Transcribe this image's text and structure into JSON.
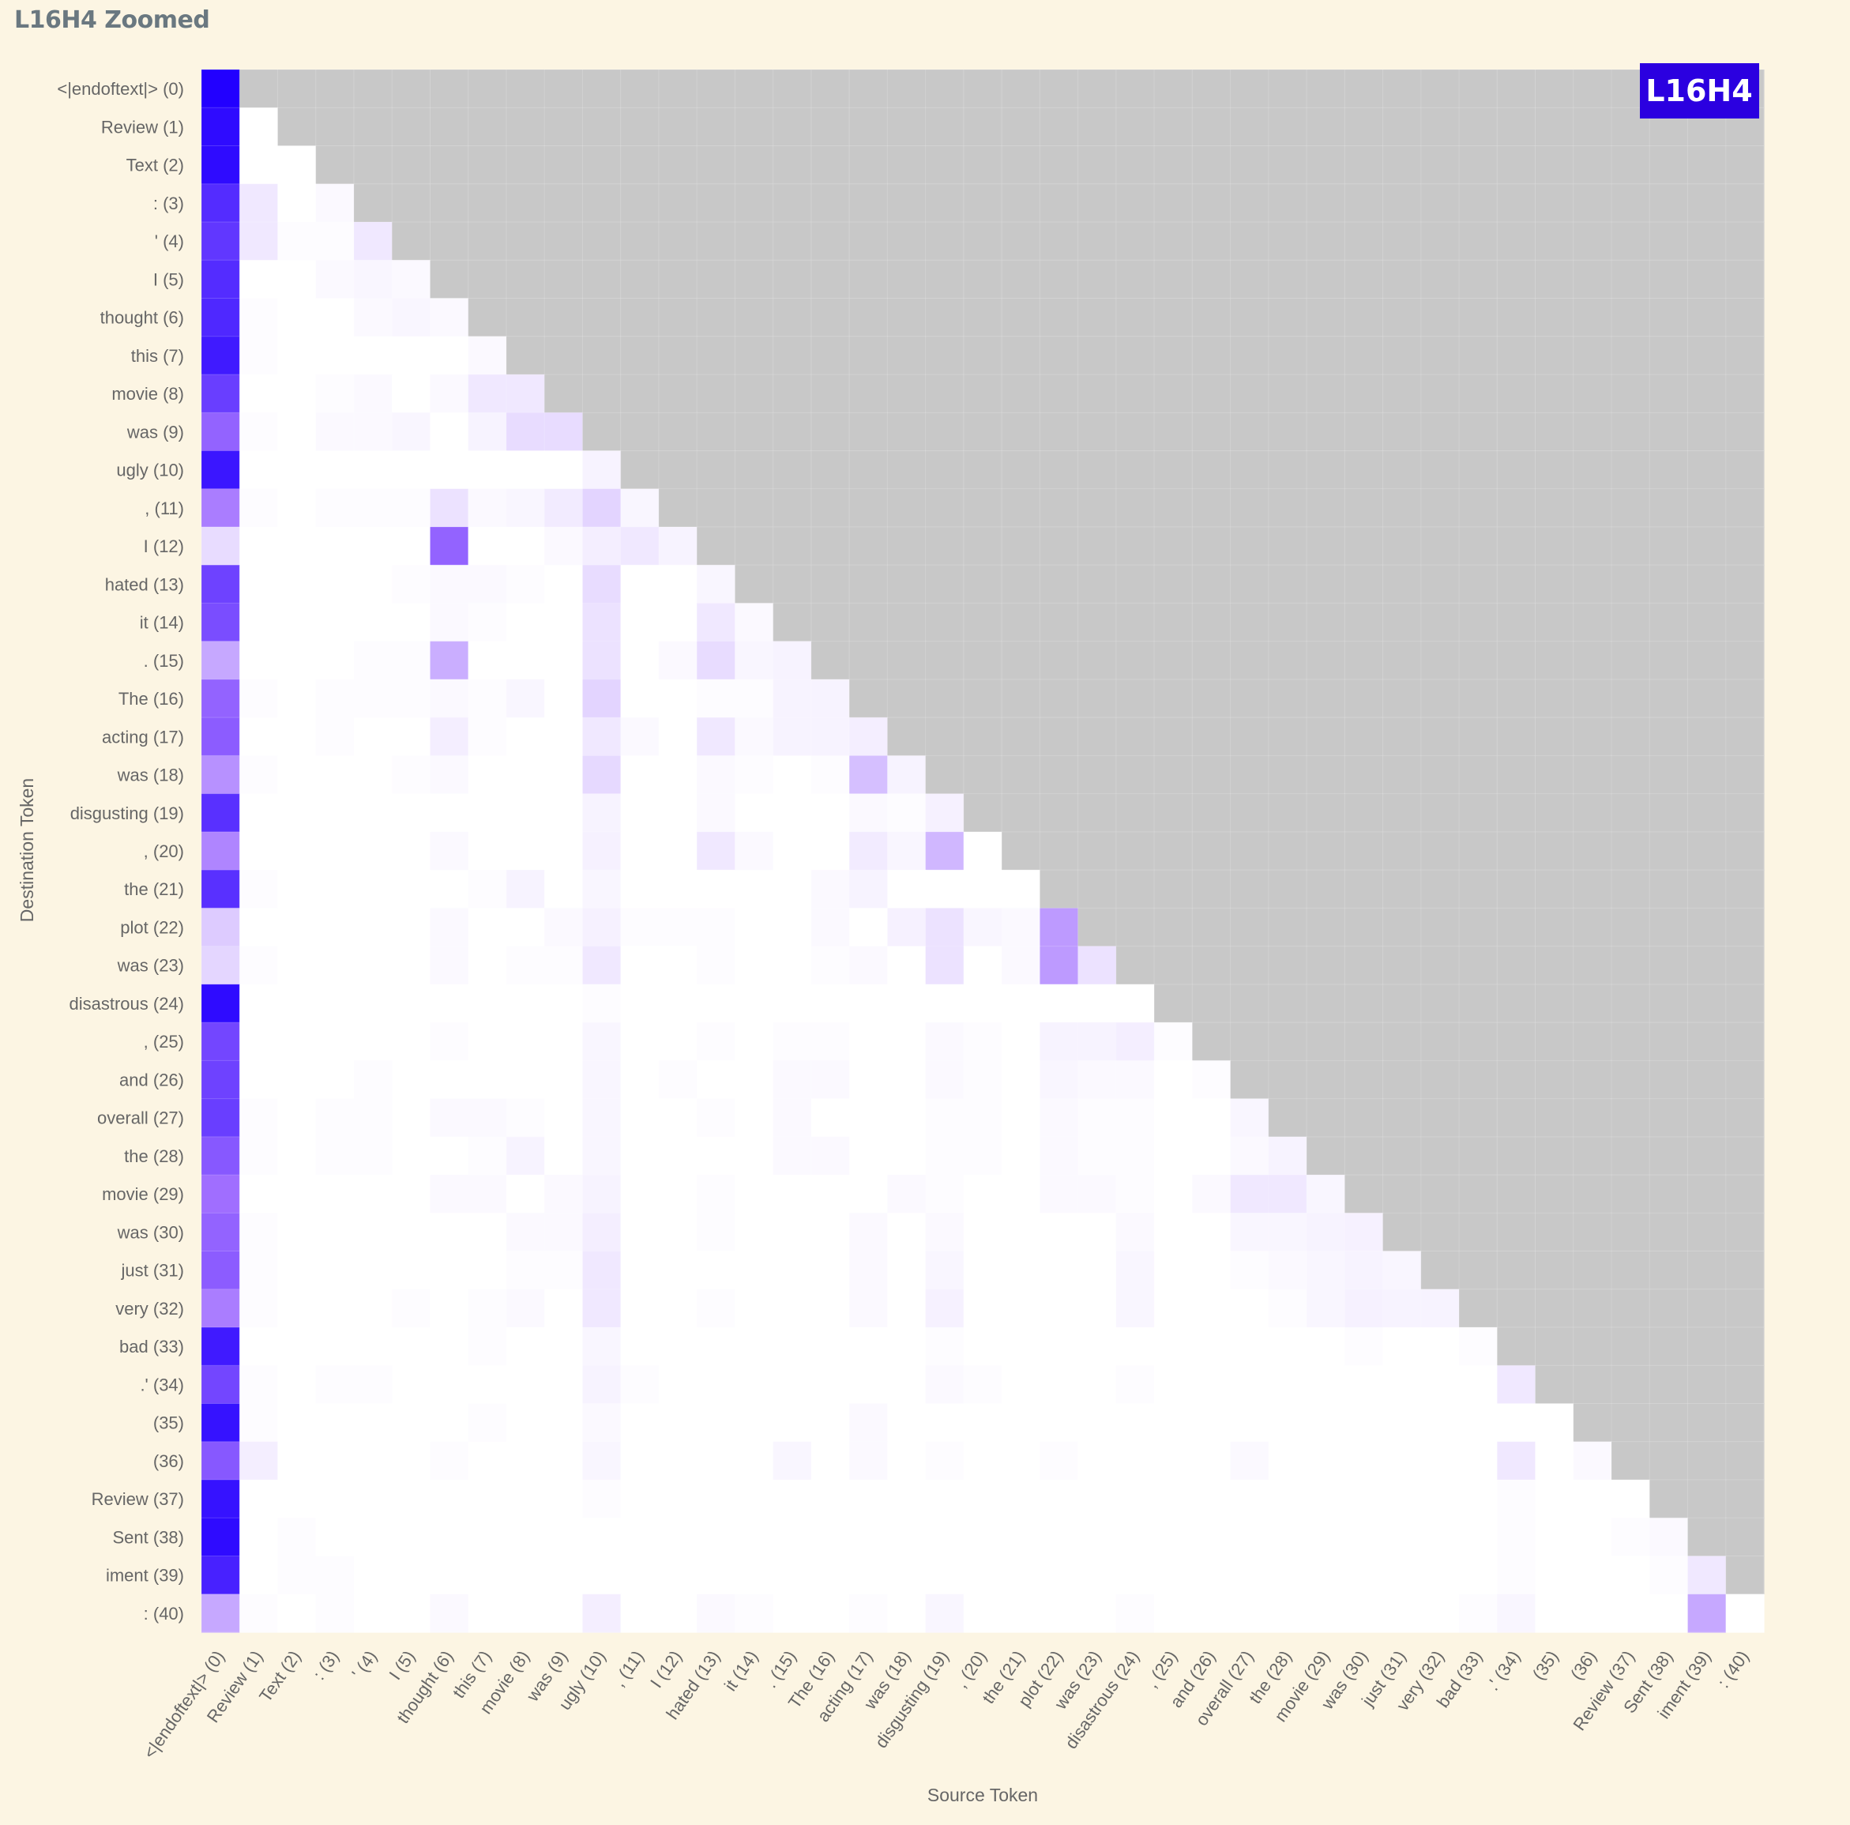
{
  "header": {
    "title": "L16H4 Zoomed"
  },
  "chart_data": {
    "type": "heatmap",
    "badge": "L16H4",
    "xlabel": "Source Token",
    "ylabel": "Destination Token",
    "tokens": [
      "<|endoftext|> (0)",
      "Review (1)",
      "Text (2)",
      ": (3)",
      "' (4)",
      "I (5)",
      "thought (6)",
      "this (7)",
      "movie (8)",
      "was (9)",
      "ugly (10)",
      ", (11)",
      "I (12)",
      "hated (13)",
      "it (14)",
      ". (15)",
      "The (16)",
      "acting (17)",
      "was (18)",
      "disgusting (19)",
      ", (20)",
      "the (21)",
      "plot (22)",
      "was (23)",
      "disastrous (24)",
      ", (25)",
      "and (26)",
      "overall (27)",
      "the (28)",
      "movie (29)",
      "was (30)",
      "just (31)",
      "very (32)",
      "bad (33)",
      ".' (34)",
      "(35)",
      "(36)",
      "Review (37)",
      "Sent (38)",
      "iment (39)",
      ": (40)"
    ],
    "masked": "upper-triangle (source > destination)",
    "color_scale": {
      "low": "#ffffff",
      "high": "#2200ff",
      "masked": "#c8c8c8"
    },
    "grid": true,
    "attention_weights": [
      [
        1.0
      ],
      [
        0.95,
        0.0
      ],
      [
        0.95,
        0.0,
        0.0
      ],
      [
        0.8,
        0.08,
        0.0,
        0.02
      ],
      [
        0.75,
        0.08,
        0.01,
        0.01,
        0.08
      ],
      [
        0.8,
        0.0,
        0.0,
        0.02,
        0.03,
        0.02
      ],
      [
        0.82,
        0.01,
        0.0,
        0.0,
        0.02,
        0.03,
        0.02
      ],
      [
        0.88,
        0.01,
        0.0,
        0.0,
        0.0,
        0.0,
        0.0,
        0.02
      ],
      [
        0.72,
        0.0,
        0.0,
        0.01,
        0.02,
        0.0,
        0.02,
        0.08,
        0.08
      ],
      [
        0.55,
        0.01,
        0.0,
        0.02,
        0.02,
        0.03,
        0.0,
        0.04,
        0.12,
        0.12
      ],
      [
        0.9,
        0.0,
        0.0,
        0.0,
        0.0,
        0.0,
        0.0,
        0.0,
        0.0,
        0.0,
        0.04
      ],
      [
        0.45,
        0.01,
        0.0,
        0.01,
        0.01,
        0.01,
        0.1,
        0.02,
        0.03,
        0.07,
        0.15,
        0.03
      ],
      [
        0.12,
        0.0,
        0.0,
        0.0,
        0.0,
        0.0,
        0.55,
        0.0,
        0.0,
        0.02,
        0.06,
        0.08,
        0.04
      ],
      [
        0.7,
        0.0,
        0.0,
        0.0,
        0.0,
        0.01,
        0.02,
        0.02,
        0.01,
        0.0,
        0.12,
        0.0,
        0.0,
        0.03
      ],
      [
        0.65,
        0.0,
        0.0,
        0.0,
        0.0,
        0.0,
        0.02,
        0.01,
        0.0,
        0.0,
        0.1,
        0.0,
        0.0,
        0.08,
        0.02
      ],
      [
        0.3,
        0.0,
        0.0,
        0.0,
        0.01,
        0.01,
        0.28,
        0.0,
        0.0,
        0.0,
        0.1,
        0.0,
        0.02,
        0.12,
        0.03,
        0.04
      ],
      [
        0.55,
        0.01,
        0.0,
        0.01,
        0.01,
        0.01,
        0.02,
        0.01,
        0.03,
        0.0,
        0.15,
        0.0,
        0.0,
        0.01,
        0.01,
        0.04,
        0.04
      ],
      [
        0.58,
        0.0,
        0.0,
        0.01,
        0.0,
        0.0,
        0.06,
        0.01,
        0.0,
        0.0,
        0.08,
        0.02,
        0.0,
        0.08,
        0.02,
        0.04,
        0.04,
        0.06
      ],
      [
        0.38,
        0.01,
        0.0,
        0.0,
        0.0,
        0.01,
        0.02,
        0.0,
        0.0,
        0.0,
        0.13,
        0.0,
        0.0,
        0.02,
        0.01,
        0.0,
        0.01,
        0.22,
        0.04
      ],
      [
        0.78,
        0.0,
        0.0,
        0.0,
        0.0,
        0.0,
        0.0,
        0.0,
        0.0,
        0.0,
        0.04,
        0.0,
        0.0,
        0.02,
        0.0,
        0.0,
        0.0,
        0.02,
        0.01,
        0.05
      ],
      [
        0.42,
        0.0,
        0.0,
        0.0,
        0.0,
        0.0,
        0.02,
        0.0,
        0.0,
        0.0,
        0.05,
        0.0,
        0.0,
        0.08,
        0.02,
        0.0,
        0.0,
        0.07,
        0.03,
        0.25,
        0.0
      ],
      [
        0.78,
        0.01,
        0.0,
        0.0,
        0.0,
        0.0,
        0.0,
        0.01,
        0.04,
        0.0,
        0.03,
        0.0,
        0.0,
        0.0,
        0.0,
        0.0,
        0.02,
        0.04,
        0.0,
        0.0,
        0.0,
        0.0
      ],
      [
        0.18,
        0.0,
        0.0,
        0.0,
        0.0,
        0.0,
        0.02,
        0.0,
        0.0,
        0.02,
        0.05,
        0.01,
        0.01,
        0.01,
        0.0,
        0.0,
        0.02,
        0.0,
        0.05,
        0.1,
        0.03,
        0.02,
        0.35
      ],
      [
        0.14,
        0.01,
        0.0,
        0.0,
        0.0,
        0.0,
        0.02,
        0.0,
        0.01,
        0.01,
        0.08,
        0.0,
        0.0,
        0.01,
        0.0,
        0.0,
        0.01,
        0.02,
        0.0,
        0.1,
        0.0,
        0.02,
        0.35,
        0.1
      ],
      [
        0.95,
        0.0,
        0.0,
        0.0,
        0.0,
        0.0,
        0.0,
        0.0,
        0.0,
        0.0,
        0.01,
        0.0,
        0.0,
        0.0,
        0.0,
        0.0,
        0.0,
        0.0,
        0.0,
        0.0,
        0.0,
        0.0,
        0.0,
        0.0,
        0.0
      ],
      [
        0.68,
        0.0,
        0.0,
        0.0,
        0.0,
        0.0,
        0.01,
        0.0,
        0.0,
        0.0,
        0.03,
        0.0,
        0.0,
        0.01,
        0.0,
        0.01,
        0.01,
        0.0,
        0.0,
        0.02,
        0.01,
        0.0,
        0.04,
        0.04,
        0.06,
        0.01
      ],
      [
        0.7,
        0.0,
        0.0,
        0.0,
        0.01,
        0.0,
        0.0,
        0.0,
        0.0,
        0.0,
        0.03,
        0.0,
        0.01,
        0.0,
        0.0,
        0.02,
        0.02,
        0.0,
        0.0,
        0.02,
        0.01,
        0.0,
        0.03,
        0.02,
        0.02,
        0.0,
        0.01
      ],
      [
        0.72,
        0.01,
        0.0,
        0.01,
        0.01,
        0.0,
        0.02,
        0.02,
        0.01,
        0.0,
        0.03,
        0.0,
        0.0,
        0.01,
        0.0,
        0.02,
        0.0,
        0.0,
        0.0,
        0.01,
        0.01,
        0.0,
        0.02,
        0.01,
        0.01,
        0.0,
        0.0,
        0.03
      ],
      [
        0.6,
        0.01,
        0.0,
        0.01,
        0.01,
        0.0,
        0.0,
        0.01,
        0.04,
        0.0,
        0.03,
        0.0,
        0.0,
        0.0,
        0.0,
        0.02,
        0.02,
        0.0,
        0.0,
        0.01,
        0.01,
        0.0,
        0.02,
        0.01,
        0.01,
        0.0,
        0.0,
        0.02,
        0.04
      ],
      [
        0.5,
        0.0,
        0.0,
        0.0,
        0.0,
        0.0,
        0.02,
        0.02,
        0.0,
        0.02,
        0.04,
        0.0,
        0.0,
        0.01,
        0.0,
        0.0,
        0.0,
        0.0,
        0.02,
        0.01,
        0.0,
        0.0,
        0.02,
        0.02,
        0.01,
        0.0,
        0.02,
        0.08,
        0.08,
        0.03
      ],
      [
        0.55,
        0.01,
        0.0,
        0.0,
        0.0,
        0.0,
        0.0,
        0.0,
        0.02,
        0.02,
        0.06,
        0.0,
        0.0,
        0.01,
        0.0,
        0.0,
        0.0,
        0.02,
        0.0,
        0.02,
        0.0,
        0.0,
        0.0,
        0.0,
        0.02,
        0.0,
        0.0,
        0.03,
        0.03,
        0.04,
        0.05
      ],
      [
        0.58,
        0.01,
        0.0,
        0.0,
        0.0,
        0.0,
        0.0,
        0.0,
        0.01,
        0.01,
        0.08,
        0.0,
        0.0,
        0.0,
        0.0,
        0.0,
        0.0,
        0.02,
        0.0,
        0.03,
        0.0,
        0.0,
        0.0,
        0.0,
        0.03,
        0.0,
        0.0,
        0.01,
        0.02,
        0.03,
        0.04,
        0.03
      ],
      [
        0.45,
        0.01,
        0.0,
        0.0,
        0.0,
        0.01,
        0.0,
        0.01,
        0.02,
        0.0,
        0.08,
        0.0,
        0.0,
        0.01,
        0.0,
        0.0,
        0.0,
        0.02,
        0.0,
        0.05,
        0.0,
        0.0,
        0.0,
        0.0,
        0.03,
        0.0,
        0.0,
        0.0,
        0.01,
        0.03,
        0.05,
        0.04,
        0.04
      ],
      [
        0.88,
        0.0,
        0.0,
        0.0,
        0.0,
        0.0,
        0.0,
        0.01,
        0.0,
        0.0,
        0.03,
        0.0,
        0.0,
        0.0,
        0.0,
        0.0,
        0.0,
        0.0,
        0.0,
        0.01,
        0.0,
        0.0,
        0.0,
        0.0,
        0.0,
        0.0,
        0.0,
        0.0,
        0.0,
        0.0,
        0.01,
        0.0,
        0.0,
        0.01
      ],
      [
        0.68,
        0.01,
        0.0,
        0.01,
        0.01,
        0.0,
        0.0,
        0.0,
        0.0,
        0.0,
        0.04,
        0.01,
        0.0,
        0.0,
        0.0,
        0.0,
        0.0,
        0.0,
        0.0,
        0.02,
        0.01,
        0.0,
        0.0,
        0.0,
        0.01,
        0.0,
        0.0,
        0.0,
        0.0,
        0.0,
        0.0,
        0.0,
        0.0,
        0.0,
        0.08
      ],
      [
        0.92,
        0.01,
        0.0,
        0.0,
        0.0,
        0.0,
        0.0,
        0.01,
        0.0,
        0.0,
        0.02,
        0.0,
        0.0,
        0.0,
        0.0,
        0.0,
        0.0,
        0.02,
        0.0,
        0.0,
        0.0,
        0.0,
        0.0,
        0.0,
        0.0,
        0.0,
        0.0,
        0.0,
        0.0,
        0.0,
        0.0,
        0.0,
        0.0,
        0.0,
        0.0,
        0.0
      ],
      [
        0.6,
        0.06,
        0.0,
        0.0,
        0.0,
        0.0,
        0.01,
        0.0,
        0.0,
        0.0,
        0.03,
        0.0,
        0.0,
        0.0,
        0.0,
        0.03,
        0.0,
        0.02,
        0.0,
        0.01,
        0.0,
        0.0,
        0.01,
        0.0,
        0.0,
        0.0,
        0.0,
        0.02,
        0.0,
        0.0,
        0.0,
        0.0,
        0.0,
        0.0,
        0.08,
        0.0,
        0.02
      ],
      [
        0.92,
        0.0,
        0.0,
        0.0,
        0.0,
        0.0,
        0.0,
        0.0,
        0.0,
        0.0,
        0.01,
        0.0,
        0.0,
        0.0,
        0.0,
        0.0,
        0.0,
        0.0,
        0.0,
        0.0,
        0.0,
        0.0,
        0.0,
        0.0,
        0.0,
        0.0,
        0.0,
        0.0,
        0.0,
        0.0,
        0.0,
        0.0,
        0.0,
        0.0,
        0.01,
        0.0,
        0.0,
        0.0
      ],
      [
        0.95,
        0.0,
        0.01,
        0.0,
        0.0,
        0.0,
        0.0,
        0.0,
        0.0,
        0.0,
        0.0,
        0.0,
        0.0,
        0.0,
        0.0,
        0.0,
        0.0,
        0.0,
        0.0,
        0.0,
        0.0,
        0.0,
        0.0,
        0.0,
        0.0,
        0.0,
        0.0,
        0.0,
        0.0,
        0.0,
        0.0,
        0.0,
        0.0,
        0.0,
        0.01,
        0.0,
        0.0,
        0.01,
        0.02
      ],
      [
        0.85,
        0.0,
        0.01,
        0.01,
        0.0,
        0.0,
        0.0,
        0.0,
        0.0,
        0.0,
        0.0,
        0.0,
        0.0,
        0.0,
        0.0,
        0.0,
        0.0,
        0.0,
        0.0,
        0.0,
        0.0,
        0.0,
        0.0,
        0.0,
        0.0,
        0.0,
        0.0,
        0.0,
        0.0,
        0.0,
        0.0,
        0.0,
        0.0,
        0.0,
        0.01,
        0.0,
        0.0,
        0.0,
        0.01,
        0.08
      ],
      [
        0.3,
        0.01,
        0.0,
        0.01,
        0.0,
        0.0,
        0.02,
        0.0,
        0.0,
        0.0,
        0.06,
        0.0,
        0.0,
        0.02,
        0.01,
        0.0,
        0.0,
        0.01,
        0.0,
        0.03,
        0.0,
        0.0,
        0.0,
        0.0,
        0.01,
        0.0,
        0.0,
        0.0,
        0.0,
        0.0,
        0.0,
        0.0,
        0.0,
        0.01,
        0.03,
        0.0,
        0.0,
        0.0,
        0.0,
        0.3,
        0.0
      ]
    ]
  }
}
